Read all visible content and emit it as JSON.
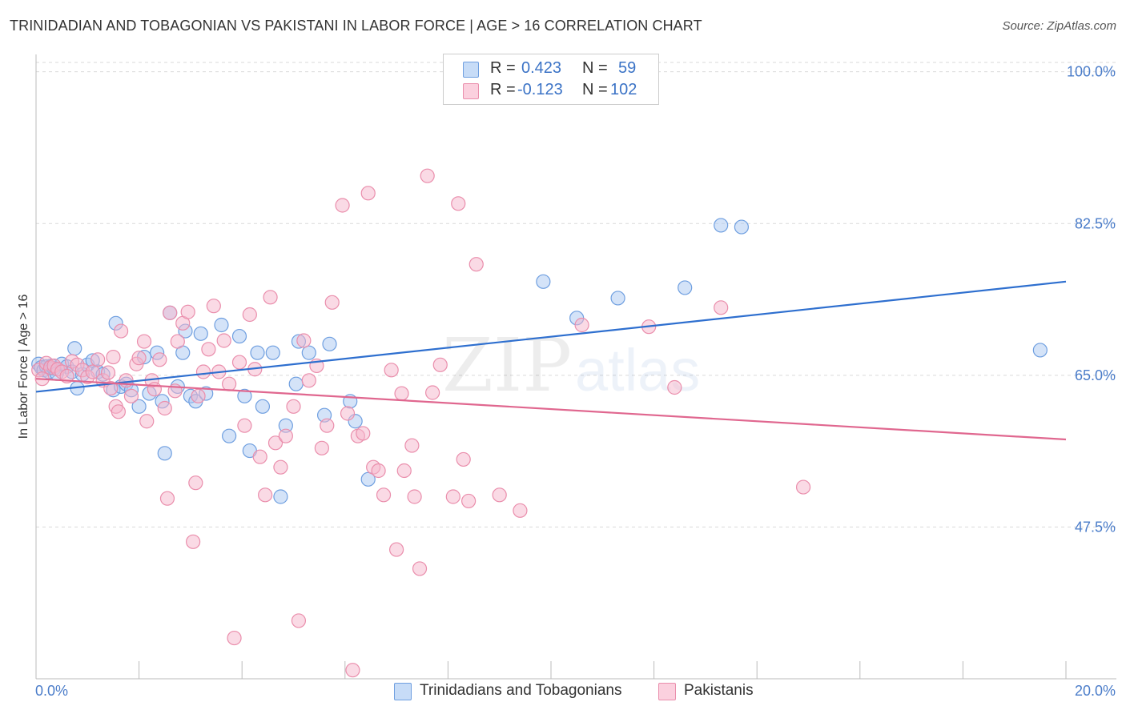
{
  "title": "TRINIDADIAN AND TOBAGONIAN VS PAKISTANI IN LABOR FORCE | AGE > 16 CORRELATION CHART",
  "source": "Source: ZipAtlas.com",
  "watermark": {
    "zip": "ZIP",
    "atlas": "atlas"
  },
  "legend": {
    "rows": [
      {
        "r_label": "R =",
        "r_value": "0.423",
        "n_label": "N =",
        "n_value": "59",
        "color": "#aac8f2"
      },
      {
        "r_label": "R =",
        "r_value": "-0.123",
        "n_label": "N =",
        "n_value": "102",
        "color": "#f6b6cb"
      }
    ]
  },
  "bottom_legend": [
    {
      "label": "Trinidadians and Tobagonians",
      "color": "#aac8f2"
    },
    {
      "label": "Pakistanis",
      "color": "#f6b6cb"
    }
  ],
  "chart_data": {
    "type": "scatter",
    "title": "TRINIDADIAN AND TOBAGONIAN VS PAKISTANI IN LABOR FORCE | AGE > 16 CORRELATION CHART",
    "xlabel": "",
    "ylabel": "In Labor Force | Age > 16",
    "xlim": [
      0,
      20
    ],
    "ylim": [
      30,
      102
    ],
    "x_tick_labels": [
      {
        "value": 0,
        "label": "0.0%"
      },
      {
        "value": 20,
        "label": "20.0%"
      }
    ],
    "y_tick_labels": [
      {
        "value": 100,
        "label": "100.0%"
      },
      {
        "value": 82.5,
        "label": "82.5%"
      },
      {
        "value": 65,
        "label": "65.0%"
      },
      {
        "value": 47.5,
        "label": "47.5%"
      }
    ],
    "series": [
      {
        "name": "Trinidadians and Tobagonians",
        "color": "#aac8f2",
        "edge": "#6f9fe0",
        "line_color": "#2e6fcf",
        "trend": {
          "x": [
            0,
            20
          ],
          "y": [
            63.1,
            75.8
          ]
        },
        "points": [
          [
            0.05,
            66.3
          ],
          [
            0.1,
            65.9
          ],
          [
            0.15,
            65.6
          ],
          [
            0.2,
            66.0
          ],
          [
            0.25,
            65.4
          ],
          [
            0.3,
            66.1
          ],
          [
            0.35,
            65.8
          ],
          [
            0.4,
            65.2
          ],
          [
            0.5,
            66.3
          ],
          [
            0.6,
            66.0
          ],
          [
            0.7,
            65.4
          ],
          [
            0.75,
            68.1
          ],
          [
            0.8,
            63.5
          ],
          [
            0.9,
            65.1
          ],
          [
            1.0,
            66.2
          ],
          [
            1.1,
            66.7
          ],
          [
            1.2,
            65.4
          ],
          [
            1.3,
            65.1
          ],
          [
            1.5,
            63.3
          ],
          [
            1.55,
            71.0
          ],
          [
            1.65,
            63.7
          ],
          [
            1.75,
            64.0
          ],
          [
            1.85,
            63.3
          ],
          [
            2.0,
            61.4
          ],
          [
            2.1,
            67.1
          ],
          [
            2.2,
            62.9
          ],
          [
            2.35,
            67.6
          ],
          [
            2.45,
            62.0
          ],
          [
            2.5,
            56.0
          ],
          [
            2.6,
            72.2
          ],
          [
            2.75,
            63.7
          ],
          [
            2.85,
            67.6
          ],
          [
            2.9,
            70.1
          ],
          [
            3.0,
            62.6
          ],
          [
            3.1,
            62.0
          ],
          [
            3.2,
            69.8
          ],
          [
            3.3,
            62.9
          ],
          [
            3.6,
            70.8
          ],
          [
            3.75,
            58.0
          ],
          [
            3.95,
            69.5
          ],
          [
            4.05,
            62.6
          ],
          [
            4.15,
            56.3
          ],
          [
            4.3,
            67.6
          ],
          [
            4.4,
            61.4
          ],
          [
            4.6,
            67.6
          ],
          [
            4.75,
            51.0
          ],
          [
            4.85,
            59.2
          ],
          [
            5.05,
            64.0
          ],
          [
            5.1,
            68.9
          ],
          [
            5.3,
            67.6
          ],
          [
            5.6,
            60.4
          ],
          [
            5.7,
            68.6
          ],
          [
            6.1,
            62.0
          ],
          [
            6.2,
            59.7
          ],
          [
            6.45,
            53.0
          ],
          [
            9.85,
            75.8
          ],
          [
            10.5,
            71.6
          ],
          [
            11.3,
            73.9
          ],
          [
            12.6,
            75.1
          ],
          [
            13.3,
            82.3
          ],
          [
            13.7,
            82.1
          ],
          [
            19.5,
            67.9
          ]
        ]
      },
      {
        "name": "Pakistanis",
        "color": "#f6b6cb",
        "edge": "#ea8eac",
        "line_color": "#e0678f",
        "trend": {
          "x": [
            0,
            20
          ],
          "y": [
            64.6,
            57.6
          ]
        },
        "points": [
          [
            0.05,
            65.6
          ],
          [
            0.12,
            64.6
          ],
          [
            0.2,
            66.4
          ],
          [
            0.28,
            65.9
          ],
          [
            0.35,
            66.1
          ],
          [
            0.42,
            65.7
          ],
          [
            0.5,
            65.4
          ],
          [
            0.6,
            64.9
          ],
          [
            0.7,
            66.6
          ],
          [
            0.8,
            66.2
          ],
          [
            0.9,
            65.6
          ],
          [
            1.0,
            64.8
          ],
          [
            1.1,
            65.4
          ],
          [
            1.2,
            66.8
          ],
          [
            1.3,
            64.4
          ],
          [
            1.4,
            65.3
          ],
          [
            1.45,
            63.5
          ],
          [
            1.5,
            67.1
          ],
          [
            1.55,
            61.4
          ],
          [
            1.6,
            60.8
          ],
          [
            1.65,
            70.1
          ],
          [
            1.75,
            64.4
          ],
          [
            1.85,
            62.6
          ],
          [
            1.95,
            66.3
          ],
          [
            2.0,
            67.0
          ],
          [
            2.1,
            68.9
          ],
          [
            2.15,
            59.7
          ],
          [
            2.25,
            64.4
          ],
          [
            2.3,
            63.4
          ],
          [
            2.4,
            66.8
          ],
          [
            2.5,
            61.2
          ],
          [
            2.55,
            50.8
          ],
          [
            2.6,
            72.2
          ],
          [
            2.7,
            63.2
          ],
          [
            2.75,
            68.9
          ],
          [
            2.85,
            71.0
          ],
          [
            2.95,
            72.3
          ],
          [
            3.05,
            45.8
          ],
          [
            3.1,
            52.6
          ],
          [
            3.15,
            62.6
          ],
          [
            3.25,
            65.4
          ],
          [
            3.35,
            68.0
          ],
          [
            3.45,
            73.0
          ],
          [
            3.55,
            65.4
          ],
          [
            3.65,
            69.0
          ],
          [
            3.75,
            64.0
          ],
          [
            3.85,
            34.7
          ],
          [
            3.95,
            66.5
          ],
          [
            4.05,
            59.2
          ],
          [
            4.15,
            72.0
          ],
          [
            4.25,
            65.7
          ],
          [
            4.35,
            55.6
          ],
          [
            4.45,
            51.2
          ],
          [
            4.55,
            74.0
          ],
          [
            4.65,
            57.2
          ],
          [
            4.75,
            54.4
          ],
          [
            4.85,
            58.0
          ],
          [
            5.0,
            61.4
          ],
          [
            5.1,
            36.7
          ],
          [
            5.2,
            69.0
          ],
          [
            5.3,
            64.4
          ],
          [
            5.45,
            66.1
          ],
          [
            5.55,
            56.6
          ],
          [
            5.65,
            59.2
          ],
          [
            5.75,
            73.4
          ],
          [
            5.95,
            84.6
          ],
          [
            6.05,
            60.6
          ],
          [
            6.15,
            31.0
          ],
          [
            6.25,
            58.0
          ],
          [
            6.35,
            58.3
          ],
          [
            6.45,
            86.0
          ],
          [
            6.55,
            54.4
          ],
          [
            6.65,
            54.0
          ],
          [
            6.75,
            51.2
          ],
          [
            6.9,
            65.6
          ],
          [
            7.0,
            44.9
          ],
          [
            7.1,
            62.9
          ],
          [
            7.15,
            54.0
          ],
          [
            7.3,
            56.9
          ],
          [
            7.35,
            51.0
          ],
          [
            7.45,
            42.7
          ],
          [
            7.6,
            88.0
          ],
          [
            7.7,
            63.0
          ],
          [
            7.85,
            66.2
          ],
          [
            8.1,
            51.0
          ],
          [
            8.2,
            84.8
          ],
          [
            8.3,
            55.3
          ],
          [
            8.4,
            50.5
          ],
          [
            8.55,
            77.8
          ],
          [
            9.0,
            51.2
          ],
          [
            9.4,
            49.4
          ],
          [
            10.6,
            70.8
          ],
          [
            11.9,
            70.6
          ],
          [
            12.4,
            63.6
          ],
          [
            13.3,
            72.8
          ],
          [
            14.9,
            52.1
          ]
        ]
      }
    ]
  }
}
